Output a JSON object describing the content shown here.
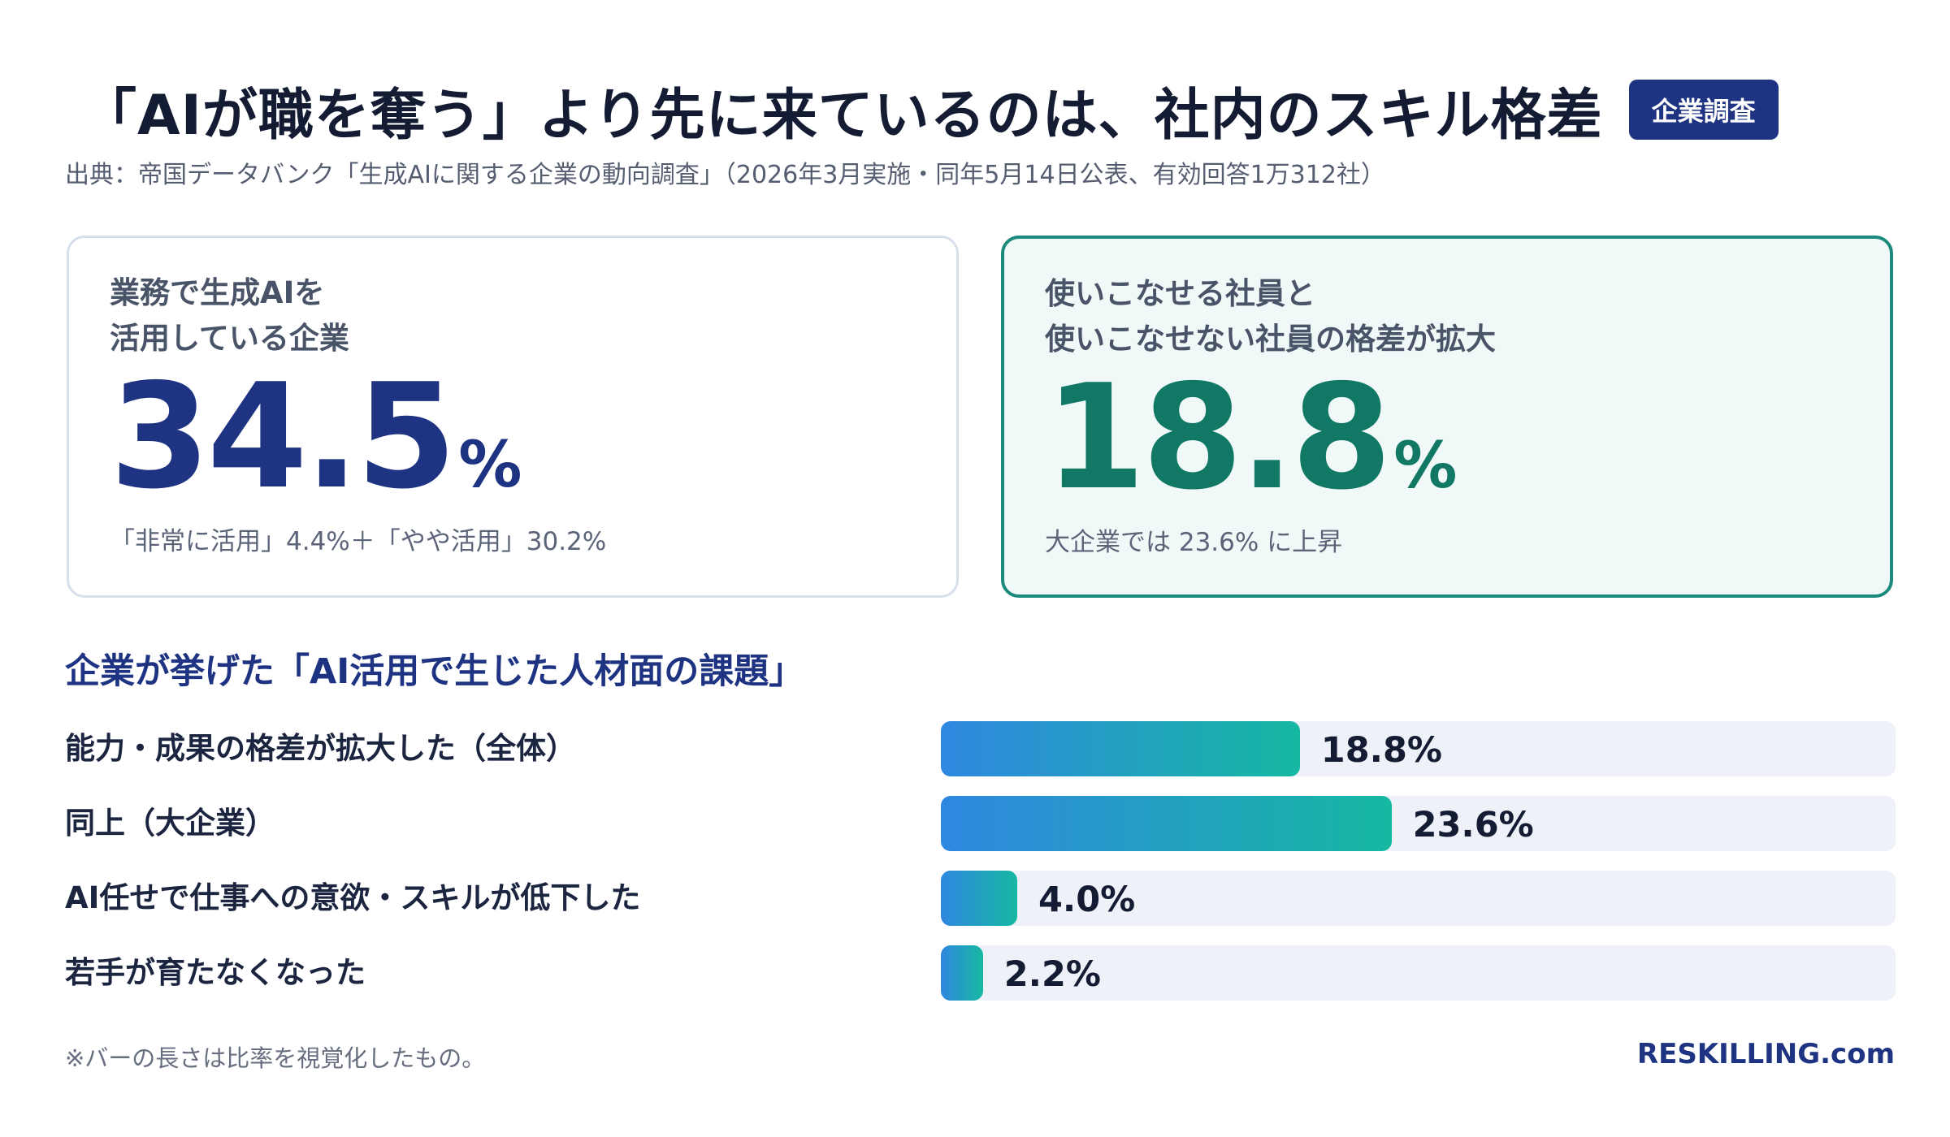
{
  "header": {
    "title": "「AIが職を奪う」より先に来ているのは、社内のスキル格差",
    "badge": "企業調査",
    "source": "出典：帝国データバンク「生成AIに関する企業の動向調査」（2026年3月実施・同年5月14日公表、有効回答1万312社）"
  },
  "cards": [
    {
      "label_line1": "業務で生成AIを",
      "label_line2": "活用している企業",
      "value": "34.5",
      "unit": "%",
      "sub": "「非常に活用」4.4%＋「やや活用」30.2%"
    },
    {
      "label_line1": "使いこなせる社員と",
      "label_line2": "使いこなせない社員の格差が拡大",
      "value": "18.8",
      "unit": "%",
      "sub": "大企業では 23.6% に上昇"
    }
  ],
  "colors": {
    "navy": "#1e3483",
    "teal": "#117866",
    "bar_start": "#2f87e0",
    "bar_end": "#16b8a2",
    "track": "#eef1f8"
  },
  "chart_data": {
    "type": "bar",
    "orientation": "horizontal",
    "title": "企業が挙げた「AI活用で生じた人材面の課題」",
    "categories": [
      "能力・成果の格差が拡大した（全体）",
      "同上（大企業）",
      "AI任せで仕事への意欲・スキルが低下した",
      "若手が育たなくなった"
    ],
    "values": [
      18.8,
      23.6,
      4.0,
      2.2
    ],
    "value_labels": [
      "18.8%",
      "23.6%",
      "4.0%",
      "2.2%"
    ],
    "unit": "%",
    "xlim": [
      0,
      50
    ],
    "grid": false,
    "legend": "none"
  },
  "footer": {
    "note": "※バーの長さは比率を視覚化したもの。",
    "brand": "RESKILLING.com"
  }
}
